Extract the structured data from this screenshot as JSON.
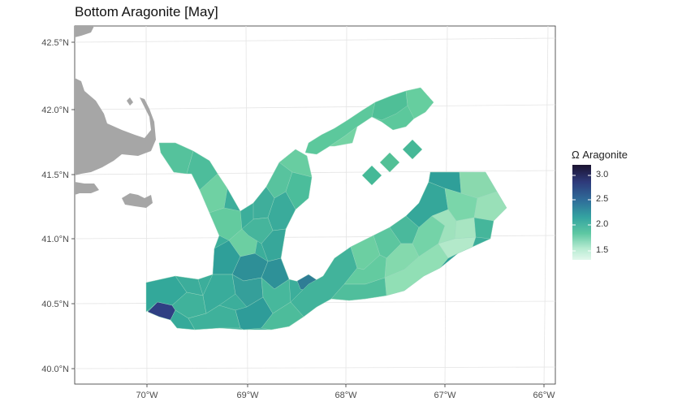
{
  "title": "Bottom Aragonite [May]",
  "legend": {
    "title": "Ω Aragonite",
    "labels": [
      "3.0",
      "2.5",
      "2.0",
      "1.5"
    ],
    "colors": [
      "#1b1330",
      "#2e3a7b",
      "#2f6f9a",
      "#34a3a1",
      "#5dc7a2",
      "#b6ebd1",
      "#e2f7ec"
    ]
  },
  "axes": {
    "x_ticks": [
      "70°W",
      "69°W",
      "68°W",
      "67°W",
      "66°W"
    ],
    "y_ticks": [
      "42.5°N",
      "42.0°N",
      "41.5°N",
      "41.0°N",
      "40.5°N",
      "40.0°N"
    ]
  },
  "map": {
    "extent_lon": [
      -70.7,
      -65.9
    ],
    "extent_lat": [
      39.95,
      42.65
    ],
    "land_color": "#a6a6a6",
    "grid": true
  }
}
